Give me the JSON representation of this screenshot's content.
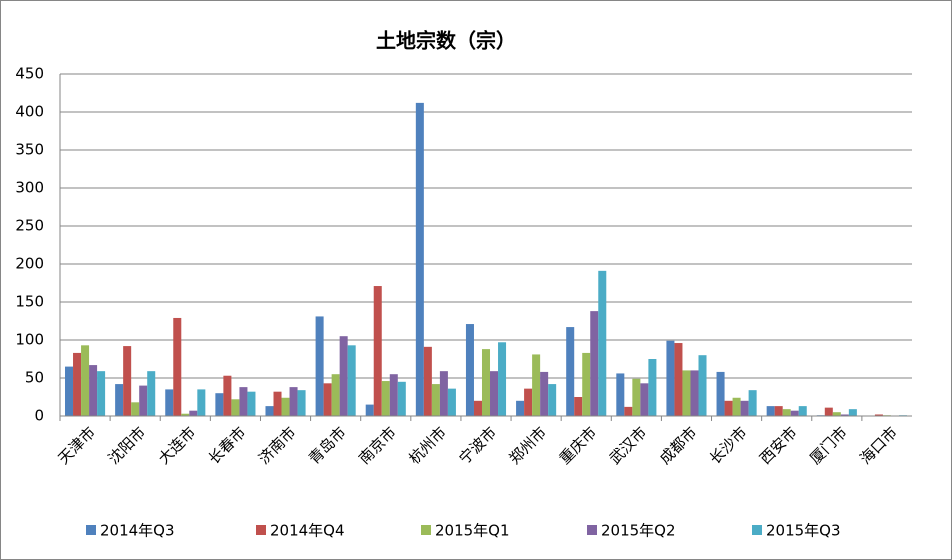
{
  "chart_data": {
    "type": "bar",
    "title": "土地宗数（宗）",
    "categories": [
      "天津市",
      "沈阳市",
      "大连市",
      "长春市",
      "济南市",
      "青岛市",
      "南京市",
      "杭州市",
      "宁波市",
      "郑州市",
      "重庆市",
      "武汉市",
      "成都市",
      "长沙市",
      "西安市",
      "厦门市",
      "海口市"
    ],
    "series": [
      {
        "name": "2014年Q3",
        "color": "#4f81bd",
        "values": [
          65,
          42,
          35,
          30,
          13,
          131,
          15,
          412,
          121,
          20,
          117,
          56,
          99,
          58,
          13,
          1,
          0
        ]
      },
      {
        "name": "2014年Q4",
        "color": "#c0504d",
        "values": [
          83,
          92,
          129,
          53,
          32,
          43,
          171,
          91,
          20,
          36,
          25,
          12,
          96,
          20,
          13,
          11,
          2
        ]
      },
      {
        "name": "2015年Q1",
        "color": "#9bbb59",
        "values": [
          93,
          18,
          3,
          22,
          24,
          55,
          46,
          42,
          88,
          81,
          83,
          49,
          60,
          24,
          9,
          5,
          1
        ]
      },
      {
        "name": "2015年Q2",
        "color": "#8064a2",
        "values": [
          67,
          40,
          7,
          38,
          38,
          105,
          55,
          59,
          59,
          58,
          138,
          43,
          60,
          20,
          7,
          2,
          0
        ]
      },
      {
        "name": "2015年Q3",
        "color": "#4bacc6",
        "values": [
          59,
          59,
          35,
          32,
          34,
          93,
          45,
          36,
          97,
          42,
          191,
          75,
          80,
          34,
          13,
          9,
          1
        ]
      }
    ],
    "ylim": [
      0,
      450
    ],
    "yticks": [
      0,
      50,
      100,
      150,
      200,
      250,
      300,
      350,
      400,
      450
    ],
    "grid": true
  }
}
